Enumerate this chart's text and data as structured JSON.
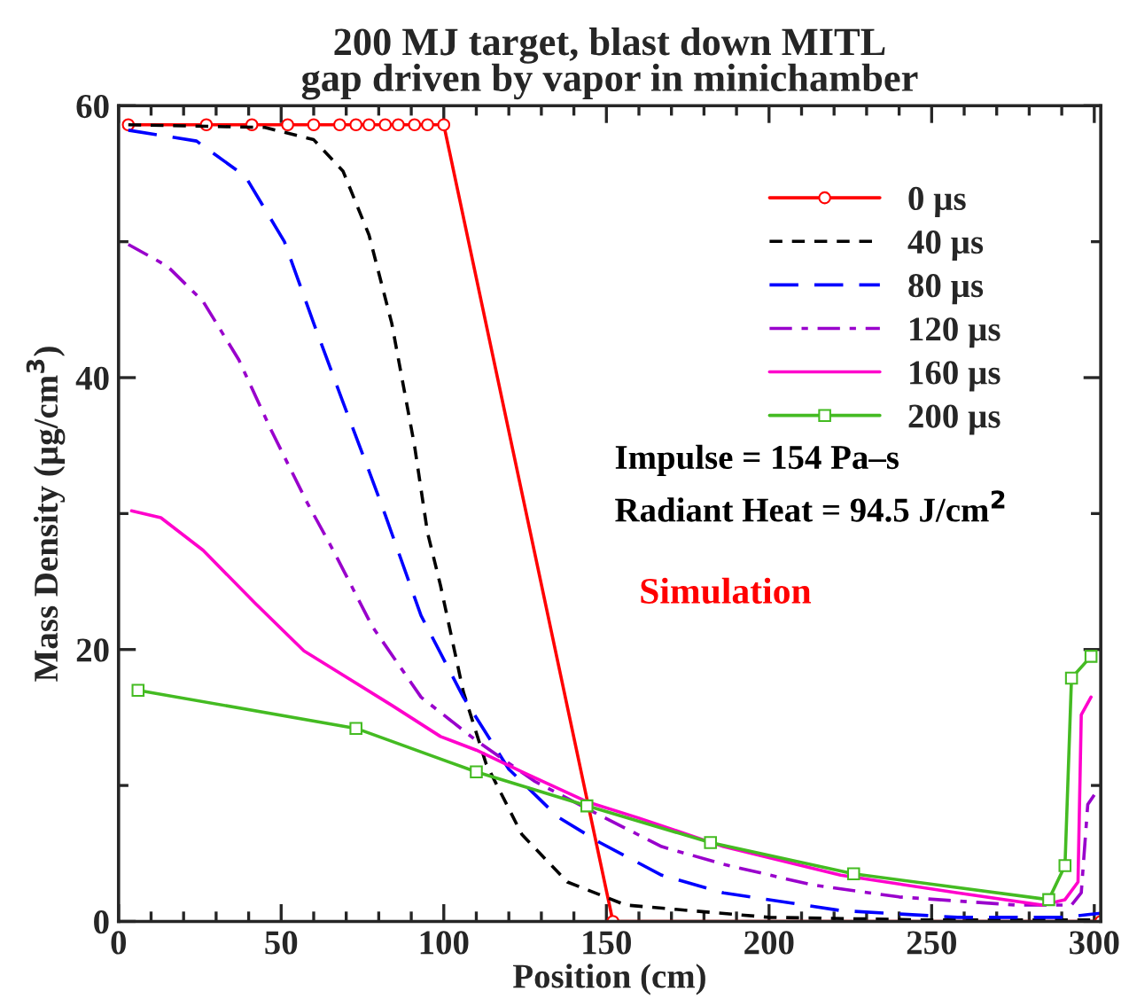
{
  "chart_data": {
    "type": "line",
    "title": "200 MJ target, blast down MITL\ngap driven by vapor in minichamber",
    "xlabel": "Position (cm)",
    "ylabel": "Mass Density (µg/cm$^{3}$)",
    "xlim": [
      0,
      302
    ],
    "ylim": [
      0,
      60
    ],
    "xticks": [
      0,
      50,
      100,
      150,
      200,
      250,
      300
    ],
    "yticks": [
      0,
      20,
      40,
      60
    ],
    "grid": false,
    "legend": "top right",
    "annotations": [
      "Impulse = 154 Pa–s",
      "Radiant Heat = 94.5 J/cm$^{2}$",
      "Simulation"
    ],
    "series": [
      {
        "name": "0 µs",
        "color": "#ff0000",
        "marker": "circle",
        "line_style": "solid",
        "x": [
          3,
          27,
          41,
          52,
          60,
          68,
          73,
          77,
          82,
          86,
          91,
          95,
          100,
          152,
          302
        ],
        "values": [
          58.6,
          58.6,
          58.6,
          58.6,
          58.6,
          58.6,
          58.6,
          58.6,
          58.6,
          58.6,
          58.6,
          58.6,
          58.6,
          0,
          0
        ]
      },
      {
        "name": "40 µs",
        "color": "#000000",
        "marker": "none",
        "line_style": "dashed",
        "x": [
          3,
          45,
          60,
          69,
          77,
          84,
          91,
          95,
          99,
          106,
          113,
          124,
          138,
          156,
          200,
          250,
          300
        ],
        "values": [
          58.6,
          58.4,
          57.5,
          55.2,
          50.5,
          44,
          35,
          28.6,
          24.7,
          16.9,
          11.6,
          6.4,
          2.9,
          1.2,
          0.3,
          0.1,
          0.1
        ]
      },
      {
        "name": "80 µs",
        "color": "#0000ff",
        "marker": "none",
        "line_style": "dashed",
        "x": [
          3,
          24,
          39,
          51,
          60,
          69,
          78,
          82,
          93,
          106,
          120,
          135,
          148,
          167,
          186,
          222,
          258,
          291,
          298,
          302
        ],
        "values": [
          58.2,
          57.4,
          54.8,
          50,
          44,
          38.2,
          32.5,
          29.9,
          22.5,
          16.5,
          11.2,
          7.7,
          5.8,
          3.4,
          2.1,
          0.8,
          0.3,
          0.3,
          0.5,
          0.6
        ]
      },
      {
        "name": "120 µs",
        "color": "#9900cc",
        "marker": "none",
        "line_style": "dashdot",
        "x": [
          3,
          15,
          26,
          37,
          47,
          58,
          66,
          78,
          93,
          110,
          128,
          148,
          167,
          186,
          213,
          240,
          276,
          293,
          296,
          298,
          300
        ],
        "values": [
          49.8,
          48.2,
          45.6,
          41.3,
          36.1,
          30.8,
          27.3,
          21.7,
          16.5,
          13.3,
          10.3,
          7.8,
          5.5,
          4.2,
          2.7,
          1.8,
          1.2,
          1.2,
          2.1,
          8.6,
          9.3
        ]
      },
      {
        "name": "160 µs",
        "color": "#ff00cc",
        "marker": "none",
        "line_style": "solid",
        "x": [
          4,
          13,
          26,
          42,
          57,
          84,
          99,
          110,
          124,
          144,
          160,
          186,
          222,
          258,
          284,
          291,
          295,
          296,
          299
        ],
        "values": [
          30.2,
          29.7,
          27.3,
          23.4,
          19.9,
          15.9,
          13.6,
          12.6,
          11,
          8.8,
          7.6,
          5.5,
          3.4,
          2.1,
          1.2,
          1.6,
          2.9,
          15.2,
          16.5
        ]
      },
      {
        "name": "200 µs",
        "color": "#44bb22",
        "marker": "square",
        "line_style": "solid",
        "x": [
          6,
          73,
          110,
          144,
          182,
          226,
          286,
          291,
          293,
          299
        ],
        "values": [
          17.0,
          14.2,
          11.0,
          8.5,
          5.8,
          3.5,
          1.6,
          4.1,
          17.9,
          19.5
        ]
      }
    ]
  }
}
